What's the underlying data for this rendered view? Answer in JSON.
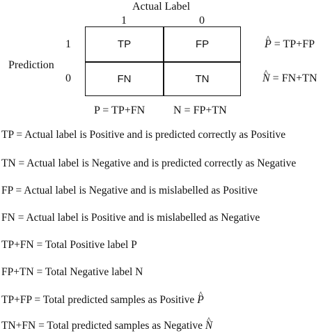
{
  "header": {
    "actual_label": "Actual Label",
    "col1": "1",
    "col0": "0"
  },
  "rows": {
    "prediction_label": "Prediction",
    "row1": "1",
    "row0": "0"
  },
  "cells": {
    "tp": "TP",
    "fp": "FP",
    "fn": "FN",
    "tn": "TN"
  },
  "sums": {
    "p_hat_var": "P",
    "p_hat_rhs": "= TP+FP",
    "n_hat_var": "N",
    "n_hat_rhs": "= FN+TN",
    "p_total": "P = TP+FN",
    "n_total": "N = FP+TN"
  },
  "definitions": [
    "TP = Actual label is Positive and is predicted correctly as Positive",
    "TN = Actual label is Negative and is predicted correctly as Negative",
    "FP = Actual label is Negative and is mislabelled as Positive",
    "FN = Actual label is Positive and is mislabelled as Negative",
    "TP+FN = Total Positive label P",
    "FP+TN = Total Negative label N",
    "TP+FP = Total predicted samples as Positive",
    "TN+FN = Total predicted samples as Negative"
  ],
  "def_hat_vars": {
    "p": "P",
    "n": "N"
  },
  "hat_glyph": "^"
}
